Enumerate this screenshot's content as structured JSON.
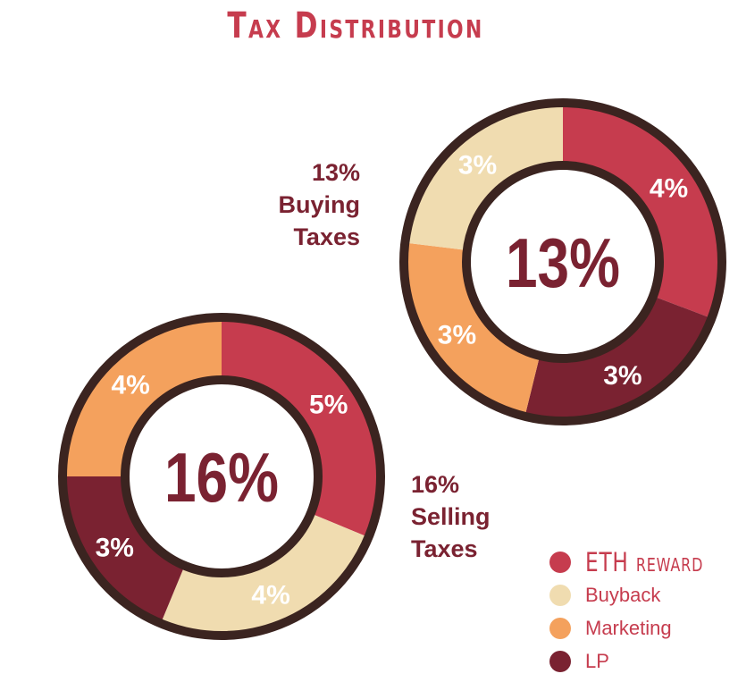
{
  "chart_data": {
    "type": "pie",
    "title": "Tax Distribution",
    "legend_position": "bottom-right",
    "legend": [
      {
        "label": "ETH reward",
        "color": "#c63c4e"
      },
      {
        "label": "Buyback",
        "color": "#f0dcb0"
      },
      {
        "label": "Marketing",
        "color": "#f4a15d"
      },
      {
        "label": "LP",
        "color": "#7a2231"
      }
    ],
    "charts": [
      {
        "id": "buy",
        "total_label": "13%",
        "caption": [
          "13%",
          "Buying",
          "Taxes"
        ],
        "slices": [
          {
            "category": "ETH reward",
            "value": 4,
            "label": "4%"
          },
          {
            "category": "LP",
            "value": 3,
            "label": "3%"
          },
          {
            "category": "Marketing",
            "value": 3,
            "label": "3%"
          },
          {
            "category": "Buyback",
            "value": 3,
            "label": "3%"
          }
        ]
      },
      {
        "id": "sell",
        "total_label": "16%",
        "caption": [
          "16%",
          "Selling",
          "Taxes"
        ],
        "slices": [
          {
            "category": "ETH reward",
            "value": 5,
            "label": "5%"
          },
          {
            "category": "Buyback",
            "value": 4,
            "label": "4%"
          },
          {
            "category": "LP",
            "value": 3,
            "label": "3%"
          },
          {
            "category": "Marketing",
            "value": 4,
            "label": "4%"
          }
        ]
      }
    ]
  }
}
